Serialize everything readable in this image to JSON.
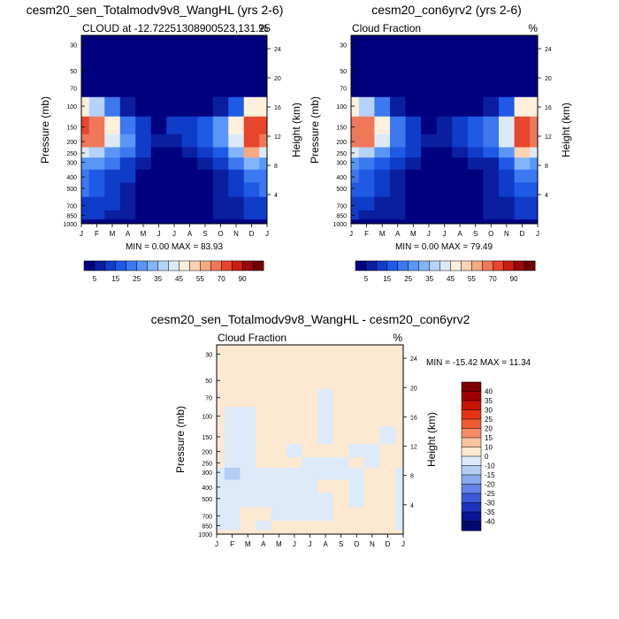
{
  "panels": {
    "p1": {
      "title": "cesm20_sen_Totalmodv9v8_WangHL (yrs 2-6)",
      "left_label": "CLOUD at -12.72251308900523,131.25",
      "right_label": "%",
      "stats": "MIN =   0.00 MAX =  83.93"
    },
    "p2": {
      "title": "cesm20_con6yrv2 (yrs 2-6)",
      "left_label": "Cloud Fraction",
      "right_label": "%",
      "stats": "MIN =   0.00 MAX =  79.49"
    },
    "p3": {
      "title": "cesm20_sen_Totalmodv9v8_WangHL - cesm20_con6yrv2",
      "left_label": "Cloud Fraction",
      "right_label": "%",
      "stats": "MIN = -15.42 MAX =  11.34"
    }
  },
  "axes": {
    "ylabel": "Pressure (mb)",
    "y2label": "Height (km)",
    "pressure_ticks": [
      "30",
      "50",
      "70",
      "100",
      "150",
      "200",
      "250",
      "300",
      "400",
      "500",
      "700",
      "850",
      "1000"
    ],
    "height_ticks": [
      "24",
      "20",
      "16",
      "12",
      "8",
      "4"
    ],
    "month_ticks": [
      "J",
      "F",
      "M",
      "A",
      "M",
      "J",
      "J",
      "A",
      "S",
      "O",
      "N",
      "D",
      "J"
    ]
  },
  "colorbars": {
    "top_labels": [
      "5",
      "15",
      "25",
      "35",
      "45",
      "55",
      "70",
      "90"
    ],
    "diff_labels": [
      "40",
      "35",
      "30",
      "25",
      "20",
      "15",
      "10",
      "0",
      "-10",
      "-15",
      "-20",
      "-25",
      "-30",
      "-35",
      "-40"
    ]
  },
  "colors": {
    "top_scale": [
      "#00007f",
      "#0a1ea0",
      "#0f3cc8",
      "#1e5ae6",
      "#3c78f0",
      "#5a96f5",
      "#82b4fa",
      "#b4d2fa",
      "#dceaf8",
      "#fff0dc",
      "#fad2b4",
      "#f5aa82",
      "#f0785a",
      "#e6462d",
      "#c81e14",
      "#960a0a",
      "#6e0000"
    ],
    "diff_scale": [
      "#7d0000",
      "#a00000",
      "#c81405",
      "#e63214",
      "#f05a32",
      "#f58c64",
      "#fac3a0",
      "#fde8d2",
      "#dceafa",
      "#b4cdf5",
      "#8caaf0",
      "#6482e6",
      "#3c5ad7",
      "#1e32be",
      "#0a1496",
      "#000a6e"
    ]
  },
  "chart_data": [
    {
      "type": "heatmap",
      "title": "cesm20_sen_Totalmodv9v8_WangHL (yrs 2-6)",
      "subtitle": "CLOUD at -12.72251308900523,131.25",
      "units": "%",
      "x": [
        "J",
        "F",
        "M",
        "A",
        "M",
        "J",
        "J",
        "A",
        "S",
        "O",
        "N",
        "D",
        "J"
      ],
      "y_pressure_mb": [
        30,
        50,
        70,
        100,
        150,
        200,
        250,
        300,
        400,
        500,
        700,
        850,
        1000
      ],
      "values": [
        [
          0,
          0,
          0,
          0,
          0,
          0,
          0,
          0,
          0,
          0,
          0,
          0,
          0
        ],
        [
          0,
          0,
          0,
          0,
          0,
          0,
          0,
          0,
          0,
          0,
          0,
          0,
          0
        ],
        [
          0,
          0,
          0,
          0,
          0,
          0,
          0,
          0,
          0,
          0,
          0,
          0,
          0
        ],
        [
          48,
          38,
          20,
          6,
          2,
          1,
          1,
          1,
          2,
          5,
          18,
          45,
          48
        ],
        [
          70,
          66,
          48,
          22,
          10,
          4,
          10,
          14,
          18,
          25,
          45,
          78,
          70
        ],
        [
          66,
          62,
          42,
          25,
          14,
          6,
          8,
          14,
          18,
          26,
          42,
          74,
          66
        ],
        [
          42,
          38,
          26,
          20,
          12,
          4,
          3,
          8,
          12,
          18,
          30,
          55,
          42
        ],
        [
          28,
          26,
          20,
          14,
          8,
          2,
          1,
          2,
          5,
          10,
          20,
          32,
          28
        ],
        [
          22,
          18,
          14,
          10,
          3,
          1,
          0,
          0,
          2,
          8,
          14,
          22,
          22
        ],
        [
          20,
          16,
          12,
          8,
          2,
          0,
          0,
          0,
          1,
          6,
          12,
          18,
          20
        ],
        [
          14,
          12,
          10,
          7,
          2,
          0,
          0,
          0,
          1,
          5,
          9,
          14,
          14
        ],
        [
          12,
          10,
          8,
          6,
          3,
          2,
          3,
          4,
          3,
          5,
          8,
          10,
          12
        ],
        [
          4,
          3,
          2,
          2,
          1,
          1,
          1,
          1,
          1,
          2,
          3,
          4,
          4
        ]
      ],
      "min": 0.0,
      "max": 83.93,
      "colorbar_levels": [
        5,
        10,
        15,
        20,
        25,
        30,
        35,
        40,
        45,
        50,
        55,
        60,
        70,
        80,
        90
      ]
    },
    {
      "type": "heatmap",
      "title": "cesm20_con6yrv2 (yrs 2-6)",
      "subtitle": "Cloud Fraction",
      "units": "%",
      "x": [
        "J",
        "F",
        "M",
        "A",
        "M",
        "J",
        "J",
        "A",
        "S",
        "O",
        "N",
        "D",
        "J"
      ],
      "y_pressure_mb": [
        30,
        50,
        70,
        100,
        150,
        200,
        250,
        300,
        400,
        500,
        700,
        850,
        1000
      ],
      "values": [
        [
          0,
          0,
          0,
          0,
          0,
          0,
          0,
          0,
          0,
          0,
          0,
          0,
          0
        ],
        [
          0,
          0,
          0,
          0,
          0,
          0,
          0,
          0,
          0,
          0,
          0,
          0,
          0
        ],
        [
          0,
          0,
          0,
          0,
          0,
          0,
          0,
          0,
          0,
          0,
          0,
          0,
          0
        ],
        [
          48,
          38,
          20,
          6,
          2,
          1,
          1,
          1,
          2,
          5,
          18,
          45,
          48
        ],
        [
          68,
          64,
          46,
          22,
          10,
          4,
          8,
          12,
          16,
          24,
          44,
          74,
          68
        ],
        [
          64,
          60,
          40,
          24,
          13,
          6,
          7,
          12,
          16,
          24,
          40,
          70,
          64
        ],
        [
          40,
          36,
          26,
          18,
          11,
          4,
          3,
          7,
          11,
          17,
          28,
          52,
          40
        ],
        [
          26,
          24,
          19,
          13,
          8,
          2,
          1,
          2,
          5,
          9,
          19,
          30,
          26
        ],
        [
          21,
          17,
          13,
          9,
          3,
          1,
          0,
          0,
          2,
          7,
          13,
          21,
          21
        ],
        [
          19,
          15,
          11,
          8,
          2,
          0,
          0,
          0,
          1,
          6,
          11,
          17,
          19
        ],
        [
          13,
          11,
          9,
          6,
          2,
          0,
          0,
          0,
          1,
          5,
          8,
          13,
          13
        ],
        [
          11,
          9,
          8,
          6,
          3,
          2,
          3,
          4,
          3,
          5,
          7,
          10,
          11
        ],
        [
          4,
          3,
          2,
          2,
          1,
          1,
          1,
          1,
          1,
          2,
          3,
          4,
          4
        ]
      ],
      "min": 0.0,
      "max": 79.49,
      "colorbar_levels": [
        5,
        10,
        15,
        20,
        25,
        30,
        35,
        40,
        45,
        50,
        55,
        60,
        70,
        80,
        90
      ]
    },
    {
      "type": "heatmap",
      "title": "cesm20_sen_Totalmodv9v8_WangHL - cesm20_con6yrv2",
      "subtitle": "Cloud Fraction",
      "units": "%",
      "x": [
        "J",
        "F",
        "M",
        "A",
        "M",
        "J",
        "J",
        "A",
        "S",
        "O",
        "N",
        "D",
        "J"
      ],
      "y_pressure_mb": [
        30,
        50,
        70,
        100,
        150,
        200,
        250,
        300,
        400,
        500,
        700,
        850,
        1000
      ],
      "values": [
        [
          1,
          1,
          1,
          1,
          1,
          1,
          1,
          1,
          1,
          1,
          1,
          1,
          1
        ],
        [
          1,
          1,
          1,
          1,
          1,
          1,
          1,
          1,
          1,
          1,
          1,
          1,
          1
        ],
        [
          1,
          1,
          1,
          1,
          1,
          1,
          1,
          -1,
          1,
          1,
          1,
          1,
          1
        ],
        [
          1,
          -2,
          -2,
          1,
          1,
          1,
          1,
          -1,
          1,
          1,
          1,
          1,
          1
        ],
        [
          1,
          -5,
          -2,
          1,
          6,
          1,
          1,
          -2,
          1,
          1,
          1,
          -2,
          1
        ],
        [
          1,
          -6,
          -3,
          1,
          1,
          -2,
          1,
          1,
          1,
          -2,
          -2,
          1,
          1
        ],
        [
          1,
          -8,
          -3,
          1,
          1,
          1,
          -2,
          -3,
          -2,
          1,
          -2,
          1,
          1
        ],
        [
          -2,
          -12,
          -4,
          -2,
          -2,
          -3,
          -3,
          -2,
          -2,
          -2,
          1,
          1,
          -2
        ],
        [
          -2,
          -3,
          -2,
          -2,
          -2,
          -3,
          -2,
          1,
          1,
          -2,
          1,
          1,
          -2
        ],
        [
          -2,
          -2,
          -2,
          -2,
          -3,
          -2,
          -2,
          -2,
          1,
          -2,
          1,
          1,
          -2
        ],
        [
          -2,
          -2,
          1,
          1,
          -2,
          -2,
          -2,
          -2,
          1,
          1,
          1,
          1,
          -2
        ],
        [
          -2,
          -2,
          1,
          -2,
          1,
          1,
          1,
          1,
          1,
          1,
          1,
          1,
          -2
        ],
        [
          1,
          1,
          1,
          1,
          1,
          1,
          1,
          1,
          1,
          1,
          1,
          1,
          1
        ]
      ],
      "min": -15.42,
      "max": 11.34,
      "colorbar_levels": [
        -40,
        -35,
        -30,
        -25,
        -20,
        -15,
        -10,
        0,
        10,
        15,
        20,
        25,
        30,
        35,
        40
      ]
    }
  ]
}
